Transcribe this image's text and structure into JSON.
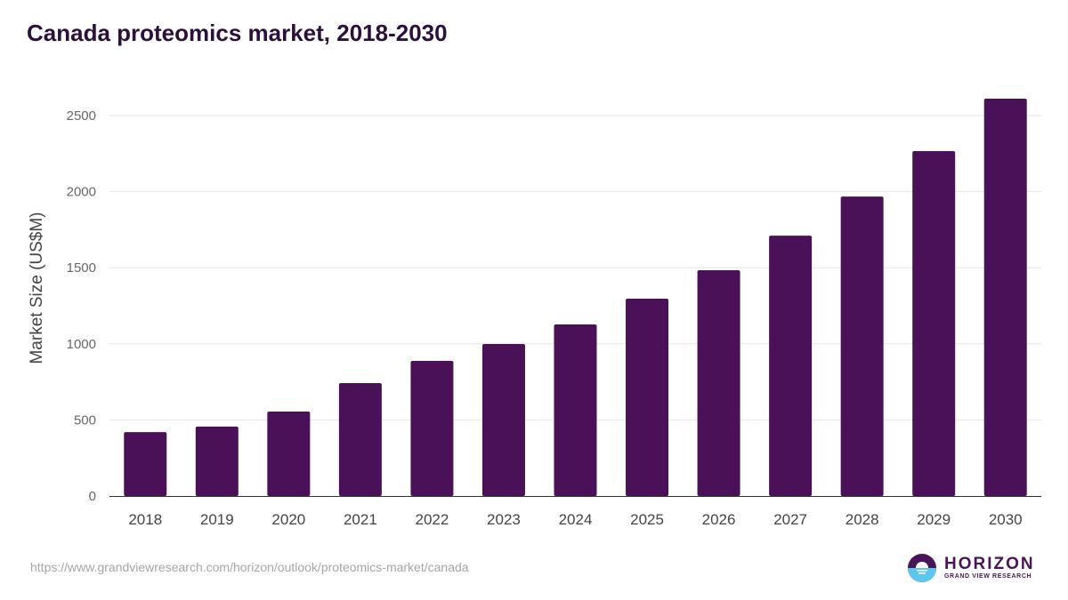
{
  "title": "Canada proteomics market, 2018-2030",
  "source_url": "https://www.grandviewresearch.com/horizon/outlook/proteomics-market/canada",
  "logo": {
    "main": "HORIZON",
    "sub": "GRAND VIEW RESEARCH"
  },
  "colors": {
    "bar": "#4b1158",
    "title": "#2d0f3c",
    "grid": "#e6e6e6"
  },
  "chart_data": {
    "type": "bar",
    "title": "Canada proteomics market, 2018-2030",
    "xlabel": "",
    "ylabel": "Market Size (US$M)",
    "ylim": [
      0,
      2500
    ],
    "yticks": [
      0,
      500,
      1000,
      1500,
      2000,
      2500
    ],
    "grid": true,
    "categories": [
      "2018",
      "2019",
      "2020",
      "2021",
      "2022",
      "2023",
      "2024",
      "2025",
      "2026",
      "2027",
      "2028",
      "2029",
      "2030"
    ],
    "values": [
      420,
      456,
      555,
      742,
      888,
      999,
      1127,
      1297,
      1484,
      1711,
      1968,
      2266,
      2611
    ]
  }
}
